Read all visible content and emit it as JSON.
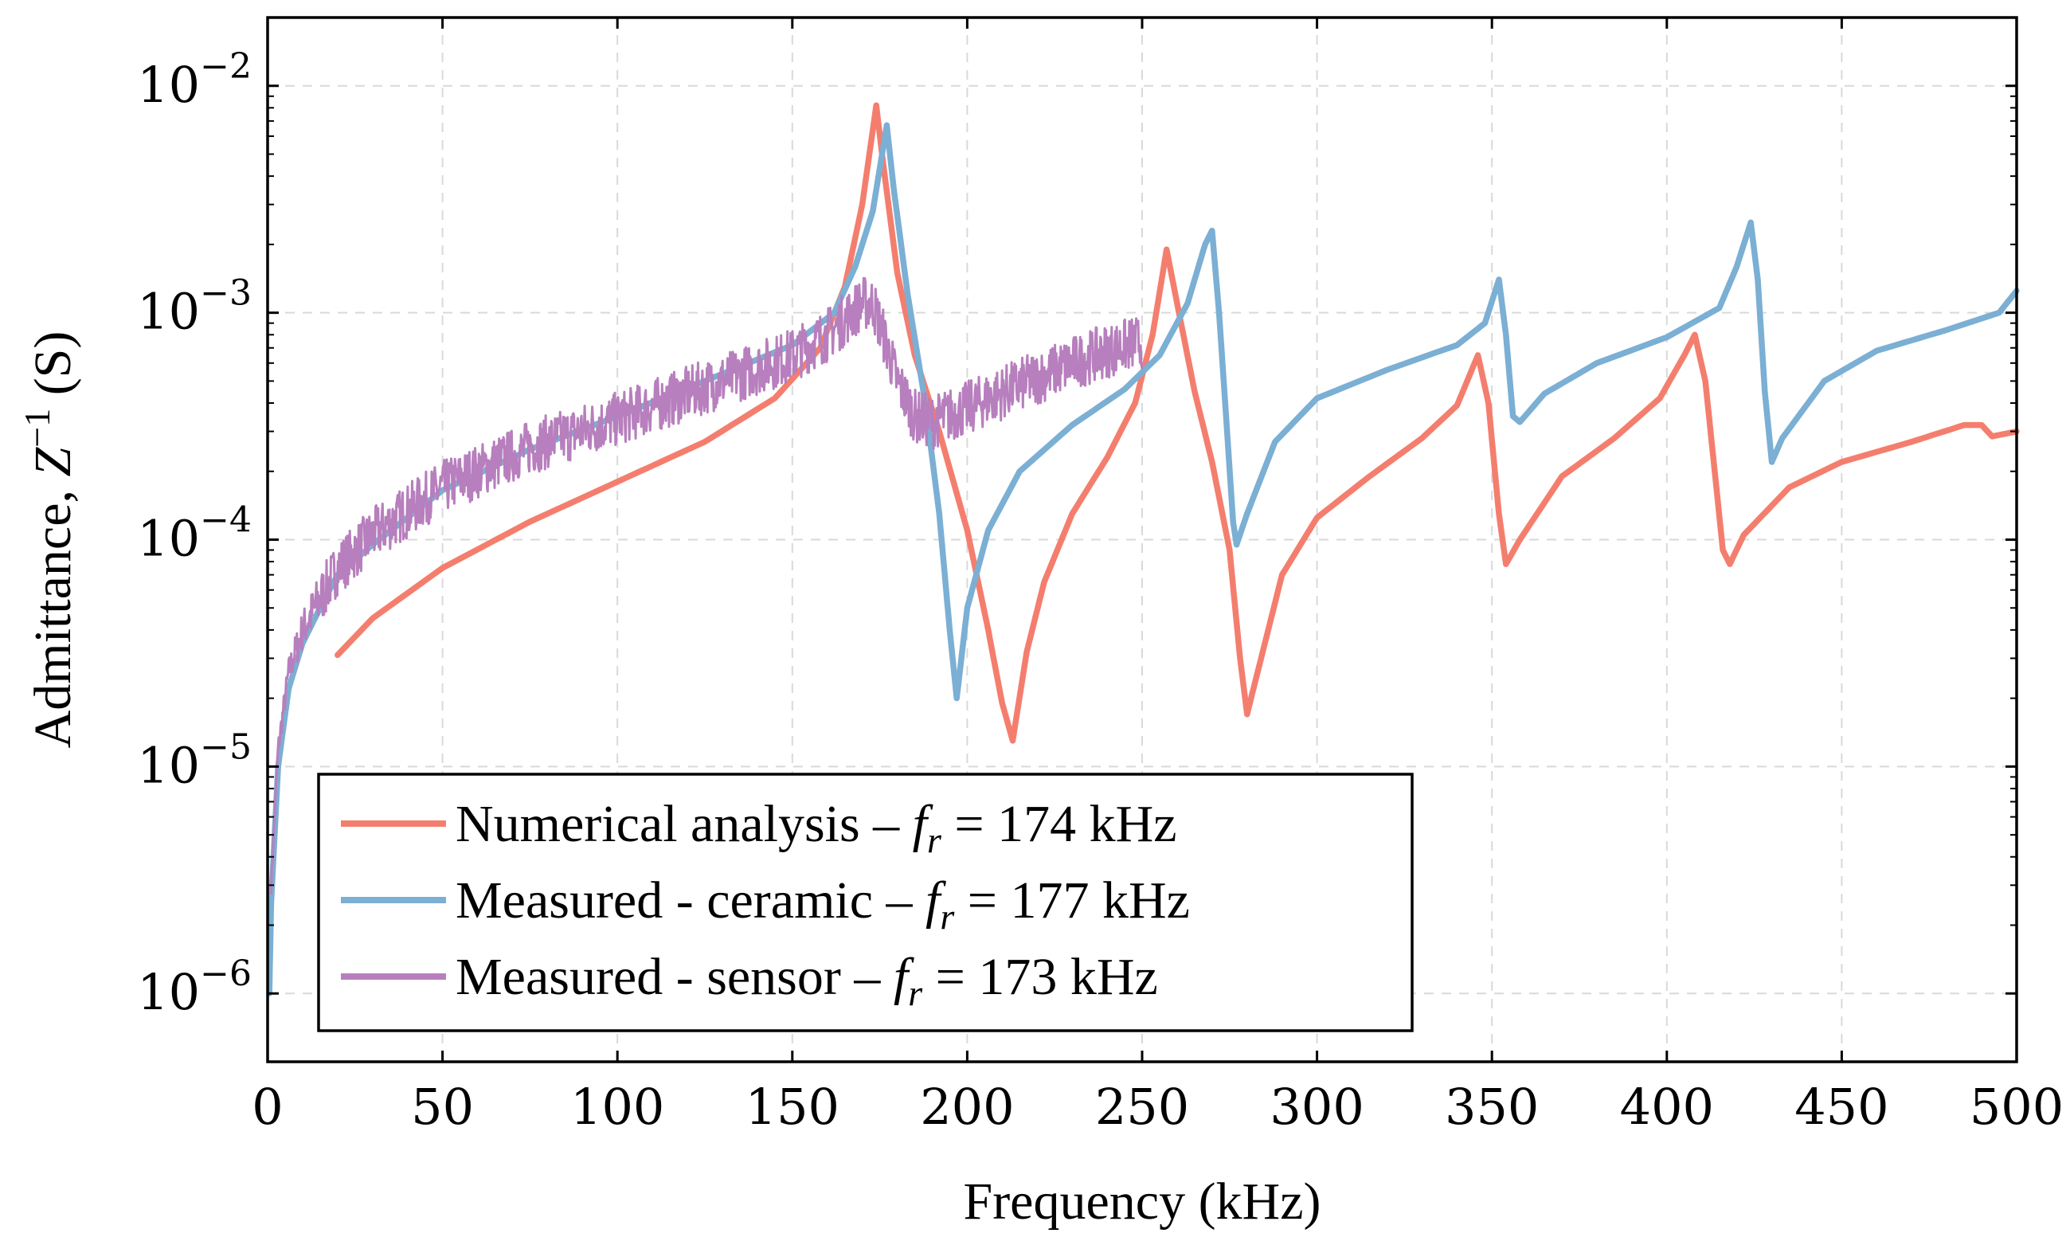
{
  "chart_data": {
    "type": "line",
    "title": "",
    "xlabel": "Frequency (kHz)",
    "ylabel": "Admittance, Z^{-1} (S)",
    "ylabel_parts": {
      "pre": "Admittance, ",
      "var": "Z",
      "sup": "−1",
      "post": " (S)"
    },
    "xscale": "linear",
    "yscale": "log",
    "xlim": [
      0,
      500
    ],
    "ylim": [
      5e-07,
      0.02
    ],
    "grid": true,
    "legend_position": "lower-left",
    "x_ticks": [
      0,
      50,
      100,
      150,
      200,
      250,
      300,
      350,
      400,
      450,
      500
    ],
    "x_tick_labels": [
      "0",
      "50",
      "100",
      "150",
      "200",
      "250",
      "300",
      "350",
      "400",
      "450",
      "500"
    ],
    "y_ticks": [
      1e-06,
      1e-05,
      0.0001,
      0.001,
      0.01
    ],
    "y_tick_labels": [
      {
        "base": "10",
        "exp": "−6"
      },
      {
        "base": "10",
        "exp": "−5"
      },
      {
        "base": "10",
        "exp": "−4"
      },
      {
        "base": "10",
        "exp": "−3"
      },
      {
        "base": "10",
        "exp": "−2"
      }
    ],
    "series": [
      {
        "name": "Numerical analysis",
        "legend": {
          "text": "Numerical analysis – ",
          "var": "f",
          "sub": "r",
          "value": " = 174 kHz"
        },
        "resonance_khz": 174,
        "color": "#f47e6e",
        "noise": 0,
        "points": [
          [
            20,
            3.1e-05
          ],
          [
            30,
            4.5e-05
          ],
          [
            50,
            7.5e-05
          ],
          [
            75,
            0.00012
          ],
          [
            100,
            0.00018
          ],
          [
            125,
            0.00027
          ],
          [
            145,
            0.00042
          ],
          [
            158,
            0.0007
          ],
          [
            165,
            0.0013
          ],
          [
            170,
            0.003
          ],
          [
            174,
            0.0082
          ],
          [
            176,
            0.0045
          ],
          [
            180,
            0.0015
          ],
          [
            185,
            0.00065
          ],
          [
            192,
            0.0003
          ],
          [
            200,
            0.00011
          ],
          [
            206,
            4e-05
          ],
          [
            210,
            1.9e-05
          ],
          [
            213,
            1.3e-05
          ],
          [
            217,
            3.2e-05
          ],
          [
            222,
            6.5e-05
          ],
          [
            230,
            0.00013
          ],
          [
            240,
            0.00023
          ],
          [
            248,
            0.0004
          ],
          [
            253,
            0.0008
          ],
          [
            257,
            0.0019
          ],
          [
            260,
            0.0011
          ],
          [
            265,
            0.00045
          ],
          [
            270,
            0.00022
          ],
          [
            275,
            9e-05
          ],
          [
            278,
            3e-05
          ],
          [
            280,
            1.7e-05
          ],
          [
            283,
            2.6e-05
          ],
          [
            290,
            7e-05
          ],
          [
            300,
            0.000125
          ],
          [
            315,
            0.00019
          ],
          [
            330,
            0.00028
          ],
          [
            340,
            0.00039
          ],
          [
            346,
            0.00065
          ],
          [
            349,
            0.0004
          ],
          [
            352,
            0.00013
          ],
          [
            354,
            7.8e-05
          ],
          [
            358,
            0.0001
          ],
          [
            370,
            0.00019
          ],
          [
            385,
            0.00028
          ],
          [
            398,
            0.00042
          ],
          [
            405,
            0.00065
          ],
          [
            408,
            0.0008
          ],
          [
            411,
            0.0005
          ],
          [
            414,
            0.00018
          ],
          [
            416,
            9e-05
          ],
          [
            418,
            7.8e-05
          ],
          [
            422,
            0.000105
          ],
          [
            435,
            0.00017
          ],
          [
            450,
            0.00022
          ],
          [
            470,
            0.00027
          ],
          [
            485,
            0.00032
          ],
          [
            490,
            0.00032
          ],
          [
            493,
            0.000285
          ],
          [
            500,
            0.0003
          ]
        ]
      },
      {
        "name": "Measured - ceramic",
        "legend": {
          "text": "Measured - ceramic – ",
          "var": "f",
          "sub": "r",
          "value": " = 177 kHz"
        },
        "resonance_khz": 177,
        "color": "#7bafd4",
        "noise": 0,
        "points": [
          [
            0.5,
            1e-06
          ],
          [
            1,
            2.5e-06
          ],
          [
            3,
            1e-05
          ],
          [
            6,
            2.2e-05
          ],
          [
            10,
            3.5e-05
          ],
          [
            15,
            5e-05
          ],
          [
            20,
            7e-05
          ],
          [
            30,
            9.5e-05
          ],
          [
            50,
            0.000165
          ],
          [
            75,
            0.00025
          ],
          [
            100,
            0.00035
          ],
          [
            125,
            0.0005
          ],
          [
            150,
            0.00072
          ],
          [
            162,
            0.001
          ],
          [
            168,
            0.0016
          ],
          [
            173,
            0.0028
          ],
          [
            177,
            0.0067
          ],
          [
            179,
            0.0035
          ],
          [
            183,
            0.0012
          ],
          [
            188,
            0.0004
          ],
          [
            192,
            0.00013
          ],
          [
            195,
            4e-05
          ],
          [
            197,
            2e-05
          ],
          [
            200,
            5e-05
          ],
          [
            206,
            0.00011
          ],
          [
            215,
            0.0002
          ],
          [
            230,
            0.00032
          ],
          [
            245,
            0.00046
          ],
          [
            255,
            0.00065
          ],
          [
            263,
            0.0011
          ],
          [
            268,
            0.002
          ],
          [
            270,
            0.0023
          ],
          [
            272,
            0.001
          ],
          [
            274,
            0.00035
          ],
          [
            276,
            0.00012
          ],
          [
            277,
            9.5e-05
          ],
          [
            280,
            0.00013
          ],
          [
            288,
            0.00027
          ],
          [
            300,
            0.00042
          ],
          [
            320,
            0.00056
          ],
          [
            340,
            0.00072
          ],
          [
            348,
            0.0009
          ],
          [
            352,
            0.0014
          ],
          [
            354,
            0.0008
          ],
          [
            356,
            0.00035
          ],
          [
            358,
            0.00033
          ],
          [
            365,
            0.00044
          ],
          [
            380,
            0.0006
          ],
          [
            400,
            0.00078
          ],
          [
            415,
            0.00105
          ],
          [
            420,
            0.0016
          ],
          [
            424,
            0.0025
          ],
          [
            426,
            0.0014
          ],
          [
            428,
            0.00045
          ],
          [
            430,
            0.00022
          ],
          [
            433,
            0.00028
          ],
          [
            445,
            0.0005
          ],
          [
            460,
            0.00068
          ],
          [
            480,
            0.00084
          ],
          [
            495,
            0.001
          ],
          [
            500,
            0.00125
          ]
        ]
      },
      {
        "name": "Measured - sensor",
        "legend": {
          "text": "Measured - sensor – ",
          "var": "f",
          "sub": "r",
          "value": " = 173 kHz"
        },
        "resonance_khz": 173,
        "color": "#b77fbd",
        "noise": 0.12,
        "points": [
          [
            1,
            3e-06
          ],
          [
            3,
            1.2e-05
          ],
          [
            6,
            2.6e-05
          ],
          [
            10,
            4e-05
          ],
          [
            15,
            5.5e-05
          ],
          [
            20,
            7.5e-05
          ],
          [
            30,
            0.000105
          ],
          [
            50,
            0.00017
          ],
          [
            75,
            0.000255
          ],
          [
            100,
            0.00034
          ],
          [
            125,
            0.00047
          ],
          [
            150,
            0.00065
          ],
          [
            160,
            0.0008
          ],
          [
            167,
            0.001
          ],
          [
            170,
            0.0011
          ],
          [
            173,
            0.0011
          ],
          [
            176,
            0.0008
          ],
          [
            180,
            0.0005
          ],
          [
            185,
            0.00035
          ],
          [
            190,
            0.00033
          ],
          [
            200,
            0.00038
          ],
          [
            215,
            0.00048
          ],
          [
            230,
            0.0006
          ],
          [
            240,
            0.00068
          ],
          [
            250,
            0.00075
          ]
        ]
      }
    ]
  }
}
